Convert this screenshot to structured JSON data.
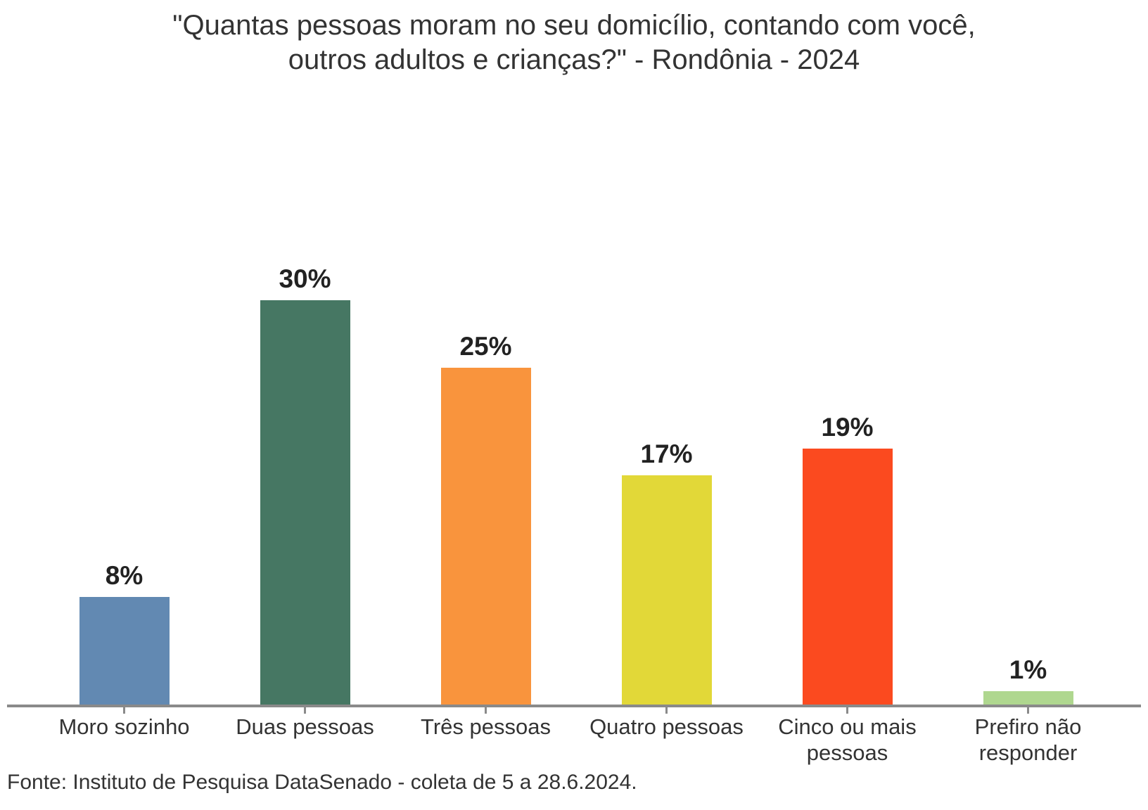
{
  "title": {
    "line1": "\"Quantas pessoas moram no seu domicílio, contando com você,",
    "line2": "outros adultos e crianças?\" - Rondônia - 2024"
  },
  "source_note": "Fonte: Instituto de Pesquisa DataSenado - coleta de 5 a 28.6.2024.",
  "chart_data": {
    "type": "bar",
    "title": "\"Quantas pessoas moram no seu domicílio, contando com você, outros adultos e crianças?\" - Rondônia - 2024",
    "categories": [
      "Moro sozinho",
      "Duas pessoas",
      "Três pessoas",
      "Quatro pessoas",
      "Cinco ou mais pessoas",
      "Prefiro não responder"
    ],
    "values": [
      8,
      30,
      25,
      17,
      19,
      1
    ],
    "labels": [
      "8%",
      "30%",
      "25%",
      "17%",
      "19%",
      "1%"
    ],
    "bar_colors": [
      "#6289B2",
      "#467763",
      "#F9943D",
      "#E2D838",
      "#FB4A1F",
      "#AFD78F"
    ],
    "xlabel": "",
    "ylabel": "",
    "ylim": [
      0,
      30
    ],
    "grid": false,
    "legend": "none",
    "value_label_position": "above",
    "axis_color": "#8A8A8A",
    "source": "Fonte: Instituto de Pesquisa DataSenado - coleta de 5 a 28.6.2024."
  }
}
